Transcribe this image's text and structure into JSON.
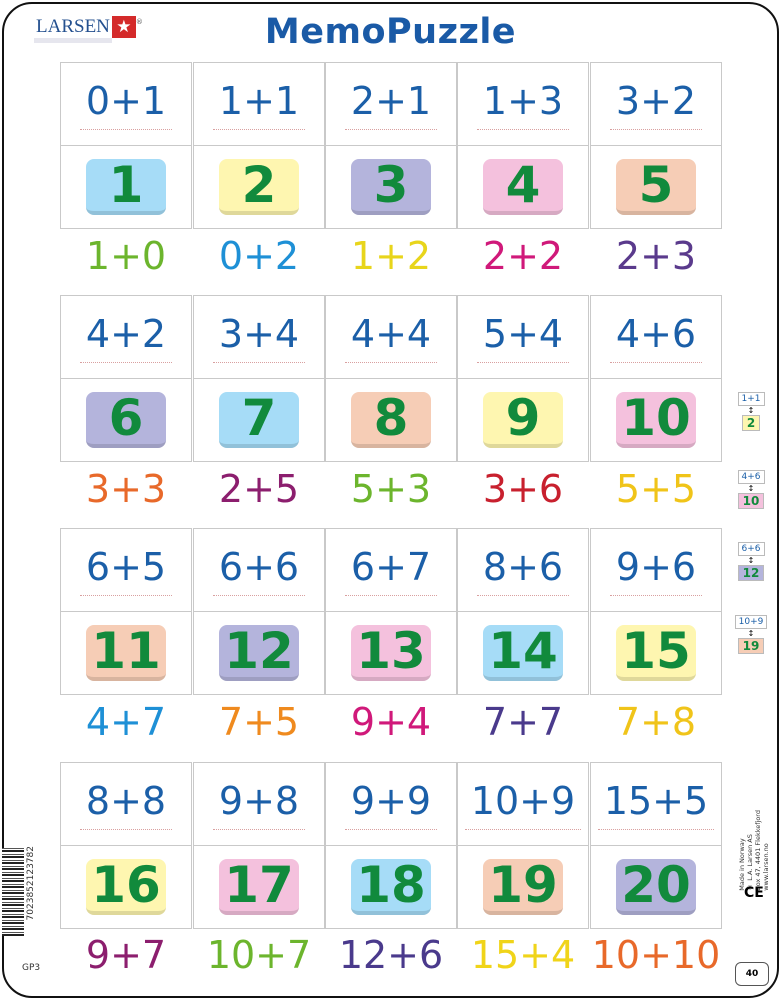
{
  "brand": "LARSEN",
  "title": "MemoPuzzle",
  "colors": {
    "question": "#1b5fa8",
    "answer": "#118a3c"
  },
  "groups": [
    {
      "questions": [
        "0+1",
        "1+1",
        "2+1",
        "1+3",
        "3+2"
      ],
      "answers": [
        {
          "n": "1",
          "bg": "#a6dcf7"
        },
        {
          "n": "2",
          "bg": "#fef6b0"
        },
        {
          "n": "3",
          "bg": "#b4b4dc"
        },
        {
          "n": "4",
          "bg": "#f4c1dd"
        },
        {
          "n": "5",
          "bg": "#f6cdb6"
        }
      ],
      "loose": [
        {
          "t": "1+0",
          "c": "#6cb52d"
        },
        {
          "t": "0+2",
          "c": "#1e90d6"
        },
        {
          "t": "1+2",
          "c": "#e8d51b"
        },
        {
          "t": "2+2",
          "c": "#d0197a"
        },
        {
          "t": "2+3",
          "c": "#5a3a8c"
        }
      ]
    },
    {
      "questions": [
        "4+2",
        "3+4",
        "4+4",
        "5+4",
        "4+6"
      ],
      "answers": [
        {
          "n": "6",
          "bg": "#b4b4dc"
        },
        {
          "n": "7",
          "bg": "#a6dcf7"
        },
        {
          "n": "8",
          "bg": "#f6cdb6"
        },
        {
          "n": "9",
          "bg": "#fef6b0"
        },
        {
          "n": "10",
          "bg": "#f4c1dd"
        }
      ],
      "loose": [
        {
          "t": "3+3",
          "c": "#e8692a"
        },
        {
          "t": "2+5",
          "c": "#8c1e6e"
        },
        {
          "t": "5+3",
          "c": "#6cb52d"
        },
        {
          "t": "3+6",
          "c": "#c8202e"
        },
        {
          "t": "5+5",
          "c": "#f0c419"
        }
      ]
    },
    {
      "questions": [
        "6+5",
        "6+6",
        "6+7",
        "8+6",
        "9+6"
      ],
      "answers": [
        {
          "n": "11",
          "bg": "#f6cdb6"
        },
        {
          "n": "12",
          "bg": "#b4b4dc"
        },
        {
          "n": "13",
          "bg": "#f4c1dd"
        },
        {
          "n": "14",
          "bg": "#a6dcf7"
        },
        {
          "n": "15",
          "bg": "#fef6b0"
        }
      ],
      "loose": [
        {
          "t": "4+7",
          "c": "#1e90d6"
        },
        {
          "t": "7+5",
          "c": "#ef8a1e"
        },
        {
          "t": "9+4",
          "c": "#d0197a"
        },
        {
          "t": "7+7",
          "c": "#4a3a8c"
        },
        {
          "t": "7+8",
          "c": "#f0c419"
        }
      ]
    },
    {
      "questions": [
        "8+8",
        "9+8",
        "9+9",
        "10+9",
        "15+5"
      ],
      "answers": [
        {
          "n": "16",
          "bg": "#fef6b0"
        },
        {
          "n": "17",
          "bg": "#f4c1dd"
        },
        {
          "n": "18",
          "bg": "#a6dcf7"
        },
        {
          "n": "19",
          "bg": "#f6cdb6"
        },
        {
          "n": "20",
          "bg": "#b4b4dc"
        }
      ],
      "loose": [
        {
          "t": "9+7",
          "c": "#8c1e6e"
        },
        {
          "t": "10+7",
          "c": "#6cb52d"
        },
        {
          "t": "12+6",
          "c": "#4a3a8c"
        },
        {
          "t": "15+4",
          "c": "#f0d419"
        },
        {
          "t": "10+10",
          "c": "#e8692a"
        }
      ]
    }
  ],
  "instructions": [
    {
      "q": "1+1",
      "a": "2"
    },
    {
      "q": "4+6",
      "a": "10"
    },
    {
      "q": "6+6",
      "a": "12"
    },
    {
      "q": "10+9",
      "a": "19"
    }
  ],
  "legal": [
    "Made in Norway",
    "© L.A. Larsen AS",
    "Box 47, 4401 Flekkefjord",
    "www.larsen.no"
  ],
  "ce": "CE",
  "pieces": "40",
  "barcode": "7023852123782",
  "product_code": "GP3"
}
